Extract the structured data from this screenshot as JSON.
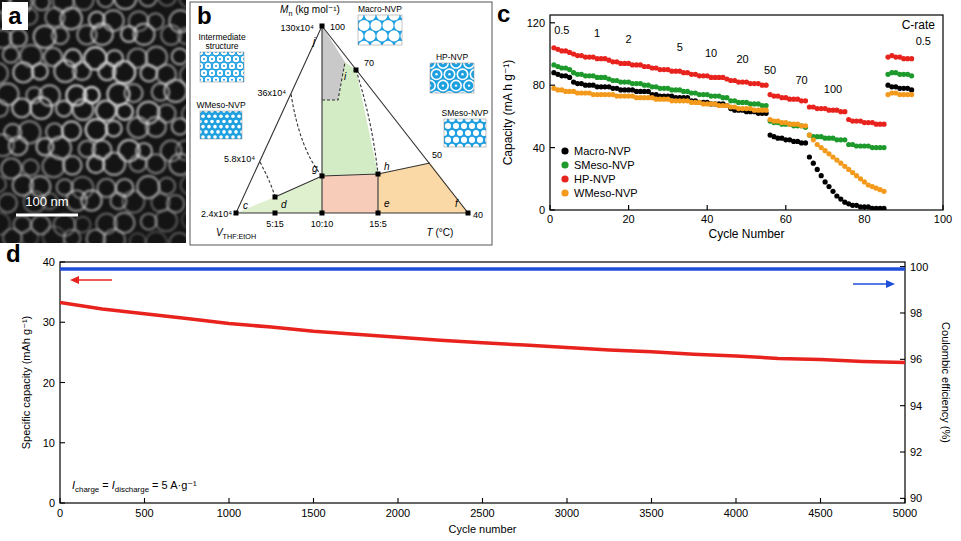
{
  "panels": [
    "a",
    "b",
    "c",
    "d"
  ],
  "image": {
    "scale_bar": "100 nm"
  },
  "diagram": {
    "axis_top": [
      {
        "text": "M",
        "italic": true
      },
      {
        "text": "n",
        "sub": true
      },
      {
        "text": " (kg mol⁻¹)"
      }
    ],
    "axis_left": [
      {
        "text": "V",
        "italic": true
      },
      {
        "text": "THF:EtOH",
        "sub": true
      }
    ],
    "axis_right": [
      {
        "text": "T",
        "italic": true
      },
      {
        "text": " (°C)"
      }
    ],
    "left_ticks": [
      "130x10⁴",
      "36x10⁴",
      "5.8x10⁴",
      "2.4x10⁴"
    ],
    "right_ticks": [
      100,
      70,
      50,
      40
    ],
    "bottom_ticks": [
      "5:15",
      "10:10",
      "15:5"
    ],
    "points": [
      "c",
      "d",
      "g",
      "h",
      "e",
      "f",
      "i",
      "j"
    ],
    "structures": [
      "Macro-NVP",
      "HP-NVP",
      "SMeso-NVP",
      "WMeso-NVP",
      "Intermediate structure"
    ]
  },
  "chart_data": [
    {
      "type": "scatter",
      "title": "C-rate",
      "xlabel": "Cycle Number",
      "ylabel": "Capacity (mA h g⁻¹)",
      "x": [
        1,
        2,
        3,
        4,
        5,
        6,
        7,
        8,
        9,
        10,
        11,
        12,
        13,
        14,
        15,
        16,
        17,
        18,
        19,
        20,
        21,
        22,
        23,
        24,
        25,
        26,
        27,
        28,
        29,
        30,
        31,
        32,
        33,
        34,
        35,
        36,
        37,
        38,
        39,
        40,
        41,
        42,
        43,
        44,
        45,
        46,
        47,
        48,
        49,
        50,
        51,
        52,
        53,
        54,
        55,
        56,
        57,
        58,
        59,
        60,
        61,
        62,
        63,
        64,
        65,
        66,
        67,
        68,
        69,
        70,
        71,
        72,
        73,
        74,
        75,
        76,
        77,
        78,
        79,
        80,
        81,
        82,
        83,
        84,
        85,
        86,
        87,
        88,
        89,
        90,
        91,
        92
      ],
      "xlim": [
        0,
        100
      ],
      "ylim": [
        0,
        125
      ],
      "xticks": [
        0,
        20,
        40,
        60,
        80,
        100
      ],
      "yticks": [
        0,
        40,
        80,
        120
      ],
      "marker": "circle",
      "legend": "lower left",
      "series": [
        {
          "name": "Macro-NVP",
          "color": "#000000",
          "values": [
            88,
            87,
            86,
            86,
            85,
            82,
            81,
            81,
            80,
            80,
            80,
            79,
            79,
            79,
            79,
            78,
            78,
            77,
            77,
            77,
            77,
            76,
            76,
            76,
            76,
            74,
            74,
            73,
            73,
            73,
            73,
            72,
            72,
            72,
            72,
            70,
            70,
            69,
            69,
            69,
            68,
            68,
            68,
            68,
            67,
            65,
            64,
            64,
            64,
            63,
            63,
            63,
            62,
            62,
            62,
            48,
            47,
            46,
            46,
            45,
            45,
            44,
            44,
            43,
            43,
            34,
            30,
            26,
            22,
            18,
            15,
            12,
            9,
            7,
            5,
            4,
            3,
            3,
            2,
            2,
            2,
            1,
            1,
            1,
            1,
            80,
            79,
            79,
            78,
            78,
            78,
            77
          ]
        },
        {
          "name": "SMeso-NVP",
          "color": "#1e9a2c",
          "values": [
            93,
            92,
            91,
            91,
            90,
            88,
            87,
            87,
            86,
            86,
            86,
            85,
            85,
            85,
            84,
            83,
            83,
            82,
            82,
            82,
            81,
            81,
            81,
            80,
            80,
            79,
            79,
            78,
            78,
            78,
            77,
            77,
            77,
            76,
            76,
            75,
            75,
            74,
            74,
            74,
            73,
            73,
            73,
            72,
            72,
            70,
            70,
            69,
            69,
            69,
            68,
            68,
            68,
            67,
            67,
            57,
            56,
            56,
            55,
            55,
            55,
            54,
            54,
            54,
            53,
            48,
            47,
            47,
            47,
            46,
            46,
            46,
            45,
            45,
            45,
            42,
            42,
            41,
            41,
            41,
            41,
            40,
            40,
            40,
            40,
            87,
            88,
            88,
            87,
            87,
            87,
            86
          ]
        },
        {
          "name": "HP-NVP",
          "color": "#e8231e",
          "values": [
            104,
            103,
            102,
            102,
            101,
            100,
            99,
            99,
            98,
            98,
            98,
            97,
            97,
            97,
            96,
            95,
            95,
            94,
            94,
            94,
            93,
            93,
            93,
            92,
            92,
            91,
            91,
            90,
            90,
            90,
            89,
            89,
            89,
            88,
            88,
            87,
            87,
            86,
            86,
            86,
            85,
            85,
            85,
            85,
            84,
            83,
            83,
            82,
            82,
            82,
            81,
            81,
            81,
            80,
            80,
            74,
            73,
            73,
            72,
            72,
            71,
            71,
            71,
            70,
            70,
            66,
            66,
            65,
            65,
            65,
            64,
            64,
            64,
            63,
            63,
            58,
            57,
            57,
            57,
            56,
            56,
            56,
            55,
            55,
            55,
            98,
            99,
            98,
            98,
            97,
            97,
            97
          ]
        },
        {
          "name": "WMeso-NVP",
          "color": "#f39a1c",
          "values": [
            78,
            77,
            77,
            76,
            76,
            76,
            75,
            75,
            75,
            75,
            74,
            74,
            74,
            74,
            74,
            74,
            73,
            73,
            73,
            73,
            73,
            72,
            72,
            72,
            72,
            72,
            71,
            71,
            71,
            71,
            70,
            70,
            70,
            70,
            70,
            69,
            69,
            69,
            68,
            68,
            68,
            68,
            67,
            67,
            67,
            66,
            66,
            65,
            65,
            65,
            65,
            64,
            64,
            64,
            64,
            58,
            57,
            57,
            56,
            56,
            55,
            55,
            55,
            54,
            54,
            48,
            45,
            42,
            40,
            38,
            36,
            34,
            32,
            30,
            28,
            26,
            24,
            22,
            20,
            18,
            16,
            15,
            14,
            13,
            12,
            74,
            75,
            75,
            74,
            74,
            74,
            74
          ]
        }
      ],
      "annotations": [
        {
          "text": "0.5",
          "x": 3,
          "y": 113
        },
        {
          "text": "1",
          "x": 12,
          "y": 111
        },
        {
          "text": "2",
          "x": 20,
          "y": 107
        },
        {
          "text": "5",
          "x": 33,
          "y": 102
        },
        {
          "text": "10",
          "x": 41,
          "y": 98
        },
        {
          "text": "20",
          "x": 49,
          "y": 94
        },
        {
          "text": "50",
          "x": 56,
          "y": 87
        },
        {
          "text": "70",
          "x": 64,
          "y": 81
        },
        {
          "text": "100",
          "x": 72,
          "y": 75
        },
        {
          "text": "0.5",
          "x": 95,
          "y": 106
        }
      ]
    },
    {
      "type": "line",
      "xlabel": "Cycle number",
      "ylabel": "Specific capacity (mAh g⁻¹)",
      "y2label": "Coulombic efficiency (%)",
      "x": [
        0,
        250,
        500,
        750,
        1000,
        1250,
        1500,
        1750,
        2000,
        2250,
        2500,
        2750,
        3000,
        3250,
        3500,
        3750,
        4000,
        4250,
        4500,
        4750,
        5000
      ],
      "xlim": [
        0,
        5000
      ],
      "ylim": [
        0,
        40
      ],
      "y2lim": [
        89.8,
        100.2
      ],
      "xticks": [
        0,
        500,
        1000,
        1500,
        2000,
        2500,
        3000,
        3500,
        4000,
        4500,
        5000
      ],
      "yticks": [
        0,
        10,
        20,
        30,
        40
      ],
      "y2ticks": [
        90,
        92,
        94,
        96,
        98,
        100
      ],
      "series": [
        {
          "color": "#e8231e",
          "values": [
            33.3,
            32.2,
            31.4,
            30.6,
            29.8,
            29.2,
            28.5,
            28.0,
            27.5,
            27.0,
            26.6,
            26.2,
            25.8,
            25.4,
            25.1,
            24.7,
            24.4,
            24.0,
            23.8,
            23.5,
            23.3
          ]
        },
        {
          "color": "#1f4fd8",
          "axis": "y2",
          "values": [
            99.9,
            99.9,
            99.9,
            99.9,
            99.9,
            99.9,
            99.9,
            99.9,
            99.9,
            99.9,
            99.9,
            99.9,
            99.9,
            99.9,
            99.9,
            99.9,
            99.9,
            99.9,
            99.9,
            99.9,
            99.9
          ]
        }
      ],
      "annotations": [
        {
          "segments": [
            {
              "text": "I",
              "italic": true
            },
            {
              "text": "charge",
              "sub": true
            },
            {
              "text": " = "
            },
            {
              "text": "I",
              "italic": true
            },
            {
              "text": "discharge",
              "sub": true
            },
            {
              "text": " = 5 A·g⁻¹"
            }
          ]
        }
      ]
    }
  ]
}
